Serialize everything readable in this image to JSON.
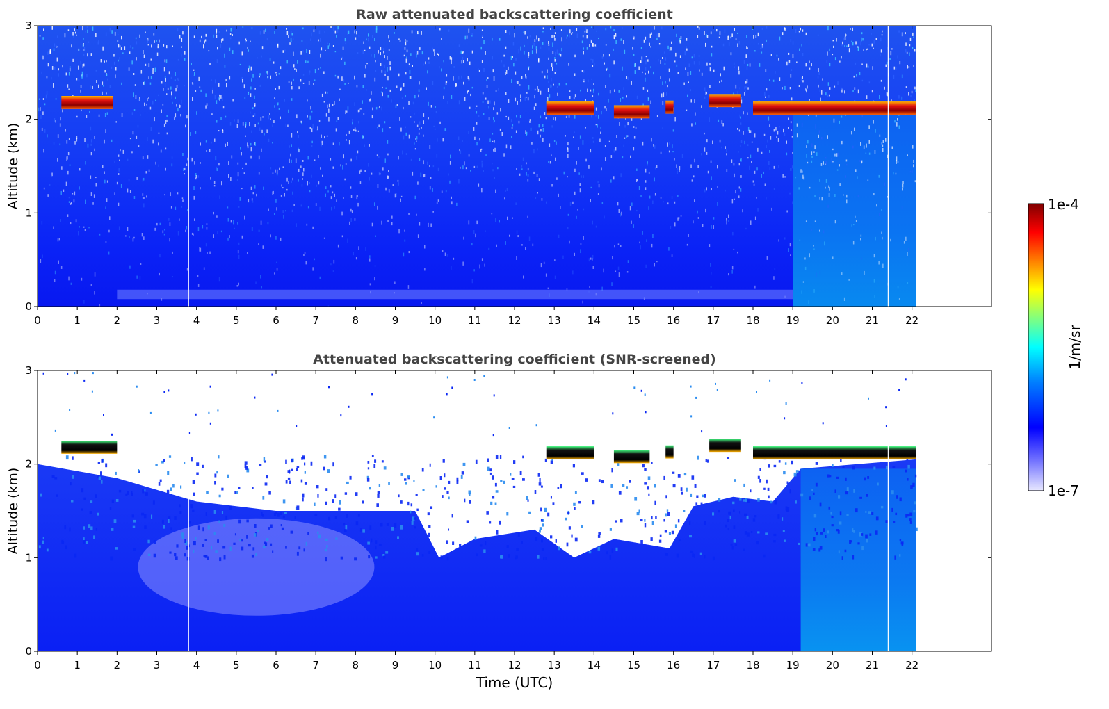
{
  "chart_data": [
    {
      "type": "heatmap",
      "title": "Raw attenuated backscattering coefficient",
      "xlabel": "",
      "ylabel": "Altitude (km)",
      "xlim": [
        0,
        24
      ],
      "ylim": [
        0,
        3
      ],
      "x_ticks": [
        0,
        1,
        2,
        3,
        4,
        5,
        6,
        7,
        8,
        9,
        10,
        11,
        12,
        13,
        14,
        15,
        16,
        17,
        18,
        19,
        20,
        21,
        22
      ],
      "y_ticks": [
        0,
        1,
        2,
        3
      ],
      "data_end_time": 22.1,
      "gap_times": [
        3.8,
        21.4
      ],
      "cloud_layers": [
        {
          "start": 0.6,
          "end": 1.9,
          "altitude": 2.18
        },
        {
          "start": 12.8,
          "end": 14.0,
          "altitude": 2.12
        },
        {
          "start": 14.5,
          "end": 15.4,
          "altitude": 2.08
        },
        {
          "start": 15.8,
          "end": 16.0,
          "altitude": 2.13
        },
        {
          "start": 16.9,
          "end": 17.7,
          "altitude": 2.2
        },
        {
          "start": 18.0,
          "end": 22.1,
          "altitude": 2.12
        }
      ]
    },
    {
      "type": "heatmap",
      "title": "Attenuated backscattering coefficient (SNR-screened)",
      "xlabel": "Time (UTC)",
      "ylabel": "Altitude (km)",
      "xlim": [
        0,
        24
      ],
      "ylim": [
        0,
        3
      ],
      "x_ticks": [
        0,
        1,
        2,
        3,
        4,
        5,
        6,
        7,
        8,
        9,
        10,
        11,
        12,
        13,
        14,
        15,
        16,
        17,
        18,
        19,
        20,
        21,
        22
      ],
      "y_ticks": [
        0,
        1,
        2,
        3
      ],
      "data_end_time": 22.1,
      "gap_times": [
        3.8,
        21.4
      ],
      "cloud_layers": [
        {
          "start": 0.6,
          "end": 2.0,
          "altitude": 2.18
        },
        {
          "start": 12.8,
          "end": 14.0,
          "altitude": 2.12
        },
        {
          "start": 14.5,
          "end": 15.4,
          "altitude": 2.08
        },
        {
          "start": 15.8,
          "end": 16.0,
          "altitude": 2.13
        },
        {
          "start": 16.9,
          "end": 17.7,
          "altitude": 2.2
        },
        {
          "start": 18.0,
          "end": 22.1,
          "altitude": 2.12
        }
      ],
      "screened_top_profile": [
        {
          "x": 0,
          "y": 2.0
        },
        {
          "x": 2,
          "y": 1.85
        },
        {
          "x": 4,
          "y": 1.6
        },
        {
          "x": 6,
          "y": 1.5
        },
        {
          "x": 8,
          "y": 1.5
        },
        {
          "x": 9.5,
          "y": 1.5
        },
        {
          "x": 10.1,
          "y": 1.0
        },
        {
          "x": 11,
          "y": 1.2
        },
        {
          "x": 12.5,
          "y": 1.3
        },
        {
          "x": 13.5,
          "y": 1.0
        },
        {
          "x": 14.5,
          "y": 1.2
        },
        {
          "x": 15.9,
          "y": 1.1
        },
        {
          "x": 16.5,
          "y": 1.55
        },
        {
          "x": 17.5,
          "y": 1.65
        },
        {
          "x": 18.5,
          "y": 1.6
        },
        {
          "x": 19.2,
          "y": 1.95
        },
        {
          "x": 22.1,
          "y": 2.05
        }
      ]
    }
  ],
  "colorbar": {
    "label": "1/m/sr",
    "max_label": "1e-4",
    "min_label": "1e-7",
    "scale": "log",
    "colormap": [
      "#e8e8ff",
      "#b4b4ff",
      "#7878ff",
      "#0000ff",
      "#0080ff",
      "#00ffff",
      "#80ff80",
      "#ffff00",
      "#ff8000",
      "#ff0000",
      "#800000"
    ]
  }
}
